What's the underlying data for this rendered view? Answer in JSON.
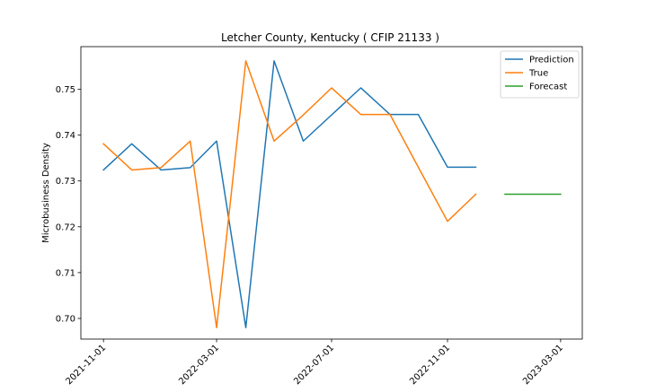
{
  "chart_data": {
    "type": "line",
    "title": "Letcher County, Kentucky ( CFIP 21133 )",
    "xlabel": "",
    "ylabel": "Microbusiness Density",
    "x_tick_labels": [
      "2021-11-01",
      "2022-03-01",
      "2022-07-01",
      "2022-11-01",
      "2023-03-01"
    ],
    "xlim": [
      "2021-10-08",
      "2023-03-24"
    ],
    "y_tick_labels": [
      "0.70",
      "0.71",
      "0.72",
      "0.73",
      "0.74",
      "0.75"
    ],
    "ylim": [
      0.6955,
      0.7593
    ],
    "grid": false,
    "legend_position": "top-right",
    "series": [
      {
        "name": "Prediction",
        "color": "#1f77b4",
        "x": [
          "2021-11-01",
          "2021-12-01",
          "2022-01-01",
          "2022-02-01",
          "2022-03-01",
          "2022-04-01",
          "2022-05-01",
          "2022-06-01",
          "2022-07-01",
          "2022-08-01",
          "2022-09-01",
          "2022-10-01",
          "2022-11-01",
          "2022-12-01"
        ],
        "y": [
          0.7324,
          0.7381,
          0.7324,
          0.7329,
          0.7387,
          0.698,
          0.7562,
          0.7387,
          0.7444,
          0.7503,
          0.7445,
          0.7445,
          0.733,
          0.733
        ]
      },
      {
        "name": "True",
        "color": "#ff7f0e",
        "x": [
          "2021-11-01",
          "2021-12-01",
          "2022-01-01",
          "2022-02-01",
          "2022-03-01",
          "2022-04-01",
          "2022-05-01",
          "2022-06-01",
          "2022-07-01",
          "2022-08-01",
          "2022-09-01",
          "2022-10-01",
          "2022-11-01",
          "2022-12-01"
        ],
        "y": [
          0.7381,
          0.7324,
          0.7329,
          0.7387,
          0.698,
          0.7562,
          0.7387,
          0.7444,
          0.7503,
          0.7445,
          0.7445,
          0.733,
          0.7212,
          0.7271
        ]
      },
      {
        "name": "Forecast",
        "color": "#2ca02c",
        "x": [
          "2023-01-01",
          "2023-02-01",
          "2023-03-01"
        ],
        "y": [
          0.7271,
          0.7271,
          0.7271
        ]
      }
    ]
  }
}
